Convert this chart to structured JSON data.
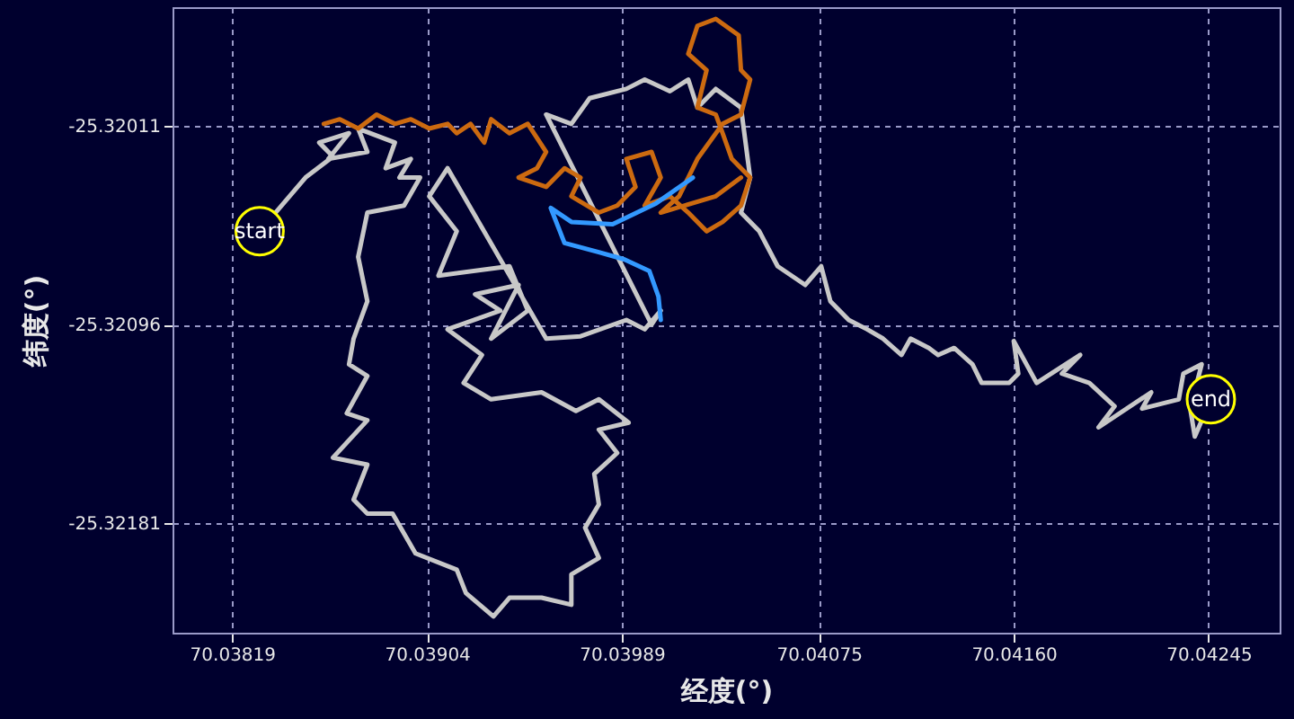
{
  "chart_data": {
    "type": "line",
    "xlabel": "经度(°)",
    "ylabel": "纬度(°)",
    "grid": true,
    "line_style": "solid",
    "marker": "none",
    "xlim": [
      70.03793,
      70.04276
    ],
    "ylim": [
      -25.32228,
      -25.3196
    ],
    "xticks": [
      70.03819,
      70.03904,
      70.03989,
      70.04075,
      {
        "value": 70.0416,
        "label": "70.04160"
      },
      70.04245
    ],
    "yticks": [
      -25.32011,
      -25.32096,
      -25.32181
    ],
    "annotations": [
      {
        "text": "start",
        "x": 70.03831,
        "y": -25.32056
      },
      {
        "text": "end",
        "x": 70.04246,
        "y": -25.32128
      }
    ],
    "series": [
      {
        "color": "#c8c8c8",
        "x": [
          70.03831,
          70.03851,
          70.03863,
          70.03857,
          70.0387,
          70.03861,
          70.03878,
          70.03874,
          70.0389,
          70.03886,
          70.03897,
          70.03892,
          70.03901,
          70.03894,
          70.03878,
          70.03874,
          70.03878,
          70.03872,
          70.0387,
          70.03878,
          70.03869,
          70.03878,
          70.03863,
          70.03878,
          70.03872,
          70.03878,
          70.03889,
          70.03899,
          70.03917,
          70.03921,
          70.03933,
          70.0394,
          70.03954,
          70.03967,
          70.03967,
          70.03979,
          70.03973,
          70.03979,
          70.03977,
          70.03987,
          70.03979,
          70.03992,
          70.03979,
          70.03969,
          70.03954,
          70.03932,
          70.0392,
          70.03928,
          70.03913,
          70.03936,
          70.03925,
          70.03944,
          70.03932,
          70.03948,
          70.0394,
          70.03909,
          70.03917,
          70.03905,
          70.03913,
          70.03956,
          70.03971,
          70.03991,
          70.03999,
          70.04006,
          70.04002,
          70.03956,
          70.03967,
          70.03975,
          70.03991,
          70.03999,
          70.0401,
          70.04018,
          70.04022,
          70.0403,
          70.04041,
          70.04045,
          70.04041,
          70.04049,
          70.04057,
          70.04069,
          70.04076,
          70.0408,
          70.04088,
          70.04096,
          70.04103,
          70.04111,
          70.04115,
          70.04123,
          70.04127,
          70.04134,
          70.04142,
          70.04146,
          70.04158,
          70.04162,
          70.0416,
          70.0417,
          70.04189,
          70.04181,
          70.04193,
          70.04204,
          70.04197,
          70.0422,
          70.04216,
          70.04232,
          70.04234,
          70.04242,
          70.04237,
          70.04239,
          70.04246
        ],
        "values": [
          -25.32056,
          -25.32033,
          -25.32024,
          -25.32018,
          -25.32014,
          -25.32025,
          -25.32022,
          -25.32012,
          -25.32018,
          -25.32029,
          -25.32025,
          -25.32033,
          -25.32033,
          -25.32045,
          -25.32048,
          -25.32067,
          -25.32086,
          -25.32102,
          -25.32113,
          -25.32118,
          -25.32134,
          -25.32137,
          -25.32153,
          -25.32156,
          -25.32171,
          -25.32177,
          -25.32177,
          -25.32194,
          -25.32201,
          -25.32211,
          -25.32221,
          -25.32213,
          -25.32213,
          -25.32216,
          -25.32203,
          -25.32196,
          -25.32183,
          -25.32173,
          -25.3216,
          -25.32151,
          -25.32141,
          -25.32138,
          -25.32128,
          -25.32133,
          -25.32125,
          -25.32128,
          -25.32121,
          -25.32109,
          -25.32098,
          -25.3209,
          -25.32083,
          -25.32079,
          -25.32102,
          -25.3209,
          -25.32071,
          -25.32075,
          -25.32056,
          -25.32041,
          -25.32029,
          -25.32102,
          -25.32101,
          -25.32094,
          -25.32098,
          -25.3209,
          -25.32096,
          -25.32006,
          -25.3201,
          -25.31999,
          -25.31995,
          -25.31991,
          -25.31996,
          -25.31991,
          -25.32003,
          -25.31995,
          -25.32003,
          -25.32033,
          -25.32048,
          -25.32056,
          -25.32071,
          -25.32079,
          -25.32071,
          -25.32086,
          -25.32094,
          -25.32098,
          -25.32102,
          -25.32109,
          -25.32102,
          -25.32106,
          -25.32109,
          -25.32106,
          -25.32113,
          -25.32121,
          -25.32121,
          -25.32117,
          -25.32103,
          -25.32121,
          -25.32109,
          -25.32117,
          -25.32121,
          -25.32131,
          -25.3214,
          -25.32125,
          -25.32132,
          -25.32128,
          -25.32117,
          -25.32113,
          -25.32132,
          -25.32144,
          -25.32128
        ]
      },
      {
        "color": "#cc6a10",
        "x": [
          70.03859,
          70.03866,
          70.03874,
          70.03882,
          70.0389,
          70.03897,
          70.03905,
          70.03913,
          70.03917,
          70.03923,
          70.03929,
          70.03932,
          70.0394,
          70.03948,
          70.03956,
          70.03952,
          70.03944,
          70.03956,
          70.03964,
          70.03971,
          70.03967,
          70.03979,
          70.03987,
          70.03995,
          70.03991,
          70.04002,
          70.04006,
          70.03999,
          70.0401,
          70.04018,
          70.04026,
          70.04033,
          70.04041,
          70.04045,
          70.04037,
          70.04033,
          70.0403,
          70.04022,
          70.04026,
          70.04018,
          70.04022,
          70.0403,
          70.0404,
          70.04041,
          70.04045,
          70.04041,
          70.04033,
          70.04022,
          70.04014,
          70.04006,
          70.0403,
          70.04041
        ],
        "values": [
          -25.3201,
          -25.32008,
          -25.32012,
          -25.32006,
          -25.3201,
          -25.32008,
          -25.32012,
          -25.3201,
          -25.32014,
          -25.3201,
          -25.32018,
          -25.32008,
          -25.32014,
          -25.3201,
          -25.32022,
          -25.32029,
          -25.32033,
          -25.32037,
          -25.32029,
          -25.32033,
          -25.32041,
          -25.32048,
          -25.32045,
          -25.32037,
          -25.32025,
          -25.32022,
          -25.32033,
          -25.32045,
          -25.32041,
          -25.32048,
          -25.32056,
          -25.32052,
          -25.32045,
          -25.32033,
          -25.32025,
          -25.32014,
          -25.32006,
          -25.32003,
          -25.31987,
          -25.3198,
          -25.31968,
          -25.31965,
          -25.31972,
          -25.31987,
          -25.31991,
          -25.32006,
          -25.3201,
          -25.32025,
          -25.32041,
          -25.32048,
          -25.32041,
          -25.32033
        ]
      },
      {
        "color": "#3399ff",
        "x": [
          70.0402,
          70.04004,
          70.03985,
          70.03967,
          70.03958,
          70.03964,
          70.03979,
          70.0399,
          70.04001,
          70.04005,
          70.04006
        ],
        "values": [
          -25.32033,
          -25.32044,
          -25.32053,
          -25.32052,
          -25.32046,
          -25.32061,
          -25.32065,
          -25.32068,
          -25.32073,
          -25.32084,
          -25.32094
        ]
      }
    ]
  }
}
